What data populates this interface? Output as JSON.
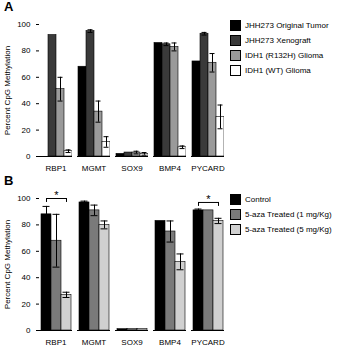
{
  "chart_data": [
    {
      "type": "bar",
      "title": "A",
      "y_label": "Percent CpG Methylation",
      "categories": [
        "RBP1",
        "MGMT",
        "SOX9",
        "BMP4",
        "PYCARD"
      ],
      "ylim": [
        0,
        100
      ],
      "yticks": [
        0,
        20,
        40,
        60,
        80,
        100
      ],
      "legend": "right",
      "series": [
        {
          "name": "JHH273 Original Tumor",
          "color": "#000000",
          "values": [
            null,
            68,
            2,
            86,
            72
          ],
          "errors": [
            null,
            null,
            null,
            null,
            null
          ]
        },
        {
          "name": "JHH273 Xenograft",
          "color": "#3a3a3a",
          "values": [
            92,
            95,
            3,
            85,
            93
          ],
          "errors": [
            null,
            1,
            null,
            1,
            1
          ]
        },
        {
          "name": "IDH1 (R132H) Glioma",
          "color": "#9a9a9a",
          "values": [
            51,
            34,
            3,
            83,
            71
          ],
          "errors": [
            9,
            8,
            1,
            3,
            7
          ]
        },
        {
          "name": "IDH1 (WT) Glioma",
          "color": "#ffffff",
          "values": [
            4,
            11,
            2,
            7,
            30
          ],
          "errors": [
            1,
            4,
            1,
            1,
            9
          ]
        }
      ]
    },
    {
      "type": "bar",
      "title": "B",
      "y_label": "Percent CpG Methylation",
      "categories": [
        "RBP1",
        "MGMT",
        "SOX9",
        "BMP4",
        "PYCARD"
      ],
      "ylim": [
        0,
        100
      ],
      "yticks": [
        0,
        20,
        40,
        60,
        80,
        100
      ],
      "legend": "right",
      "series": [
        {
          "name": "Control",
          "color": "#000000",
          "values": [
            88,
            97,
            1,
            83,
            91
          ],
          "errors": [
            6,
            1,
            null,
            null,
            1
          ]
        },
        {
          "name": "5-aza Treated (1 mg/Kg)",
          "color": "#7a7a7a",
          "values": [
            68,
            91,
            1,
            75,
            91
          ],
          "errors": [
            20,
            4,
            null,
            8,
            null
          ]
        },
        {
          "name": "5-aza Treated (5 mg/Kg)",
          "color": "#d0d0d0",
          "values": [
            27,
            80,
            1,
            52,
            83
          ],
          "errors": [
            2,
            3,
            null,
            6,
            2
          ]
        }
      ],
      "annotations": [
        {
          "category": "RBP1",
          "from": "Control",
          "to": "5-aza Treated (5 mg/Kg)",
          "y": 100,
          "text": "*"
        },
        {
          "category": "PYCARD",
          "from": "Control",
          "to": "5-aza Treated (5 mg/Kg)",
          "y": 97,
          "text": "*"
        }
      ]
    }
  ]
}
